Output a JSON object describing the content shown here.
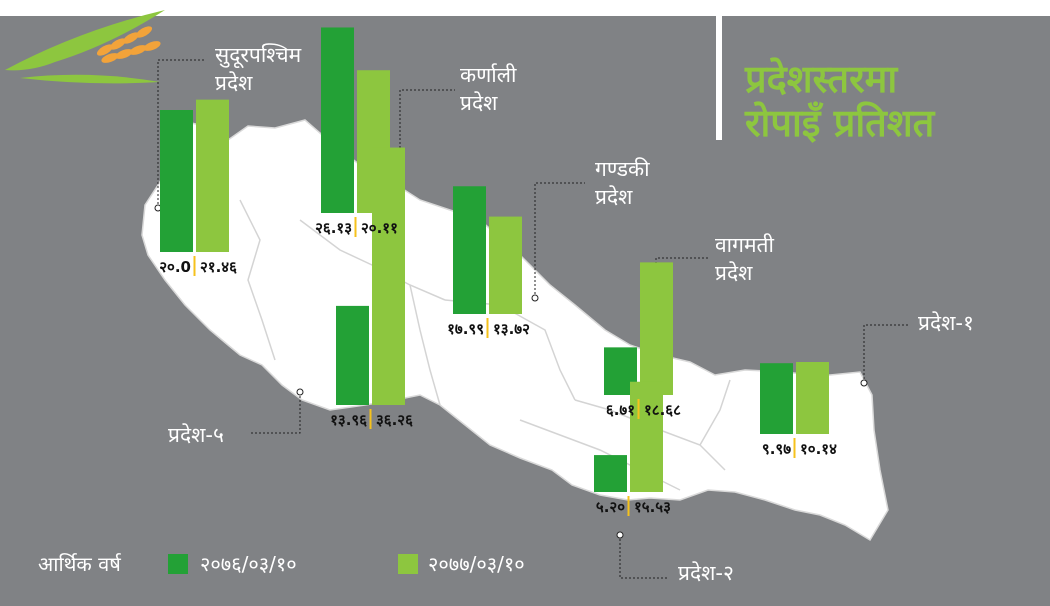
{
  "title_line1": "प्रदेशस्तरमा",
  "title_line2": "रोपाइँ प्रतिशत",
  "legend": {
    "label": "आर्थिक वर्ष",
    "items": [
      {
        "name": "२०७६/०३/१०",
        "color": "#23a136"
      },
      {
        "name": "२०७७/०३/१०",
        "color": "#8dc63f"
      }
    ]
  },
  "chart_data": {
    "type": "bar",
    "title": "प्रदेशस्तरमा रोपाइँ प्रतिशत",
    "categories": [
      "सुदूरपश्चिम प्रदेश",
      "कर्णाली प्रदेश",
      "प्रदेश-५",
      "गण्डकी प्रदेश",
      "वागमती प्रदेश",
      "प्रदेश-२",
      "प्रदेश-१"
    ],
    "series": [
      {
        "name": "२०७६/०३/१०",
        "values": [
          20.0,
          26.13,
          13.96,
          17.99,
          6.71,
          5.2,
          9.97
        ],
        "labels": [
          "२०.0",
          "२६.१३",
          "१३.९६",
          "१७.९९",
          "६.७१",
          "५.२०",
          "९.९७"
        ]
      },
      {
        "name": "२०७७/०३/१०",
        "values": [
          21.46,
          20.11,
          36.26,
          13.72,
          18.68,
          15.53,
          10.14
        ],
        "labels": [
          "२१.४६",
          "२०.११",
          "३६.२६",
          "१३.७२",
          "१८.६८",
          "१५.५३",
          "१०.१४"
        ]
      }
    ],
    "region_labels": [
      [
        "सुदूरपश्चिम",
        "प्रदेश"
      ],
      [
        "कर्णाली",
        "प्रदेश"
      ],
      [
        "प्रदेश-५"
      ],
      [
        "गण्डकी",
        "प्रदेश"
      ],
      [
        "वागमती",
        "प्रदेश"
      ],
      [
        "प्रदेश-२"
      ],
      [
        "प्रदेश-१"
      ]
    ],
    "colors": {
      "series1": "#23a136",
      "series2": "#8dc63f",
      "map": "#ffffff",
      "background": "#808285",
      "divider": "#f6c21c"
    }
  }
}
